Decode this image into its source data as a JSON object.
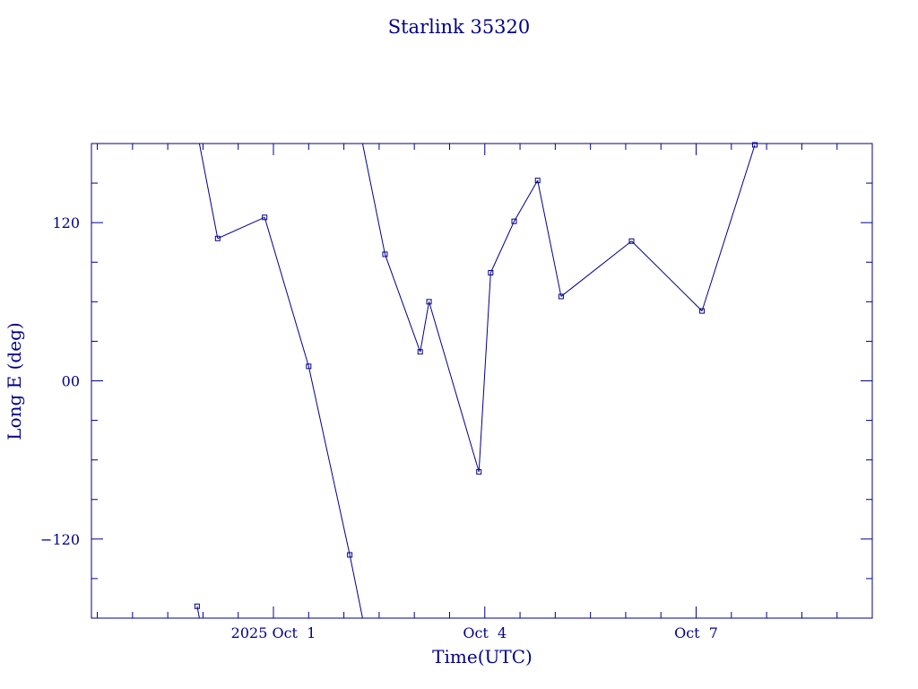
{
  "chart_data": {
    "type": "line",
    "title": "Starlink 35320",
    "xlabel": "Time(UTC)",
    "ylabel": "Long E (deg)",
    "x_unit": "date (UTC)",
    "xlim": [
      "2025-09-28 10:00",
      "2025-10-09 12:00"
    ],
    "ylim": [
      -180,
      180
    ],
    "x_major_ticks": [
      {
        "x": "2025-10-01 00:00",
        "label": "2025 Oct  1"
      },
      {
        "x": "2025-10-04 00:00",
        "label": "Oct  4"
      },
      {
        "x": "2025-10-07 00:00",
        "label": "Oct  7"
      }
    ],
    "x_minor_tick_step_hours": 12,
    "y_major_ticks": [
      {
        "y": 120,
        "label": "120"
      },
      {
        "y": 0,
        "label": "00"
      },
      {
        "y": -120,
        "label": "−120"
      }
    ],
    "y_minor_tick_step": 30,
    "grid": false,
    "wrap_longitude": true,
    "series": [
      {
        "points": [
          {
            "x": "2025-09-29 22:00",
            "y": -171
          },
          {
            "x": "2025-09-30 05:00",
            "y": 108
          },
          {
            "x": "2025-09-30 21:00",
            "y": 124
          },
          {
            "x": "2025-10-01 12:00",
            "y": 11
          },
          {
            "x": "2025-10-02 02:00",
            "y": -132
          },
          {
            "x": "2025-10-02 14:00",
            "y": 96
          },
          {
            "x": "2025-10-03 02:00",
            "y": 22
          },
          {
            "x": "2025-10-03 05:00",
            "y": 60
          },
          {
            "x": "2025-10-03 22:00",
            "y": -69
          },
          {
            "x": "2025-10-04 02:00",
            "y": 82
          },
          {
            "x": "2025-10-04 10:00",
            "y": 121
          },
          {
            "x": "2025-10-04 18:00",
            "y": 152
          },
          {
            "x": "2025-10-05 02:00",
            "y": 64
          },
          {
            "x": "2025-10-06 02:00",
            "y": 106
          },
          {
            "x": "2025-10-07 02:00",
            "y": 53
          },
          {
            "x": "2025-10-07 20:00",
            "y": 179
          }
        ]
      }
    ],
    "color": "#00008b"
  }
}
